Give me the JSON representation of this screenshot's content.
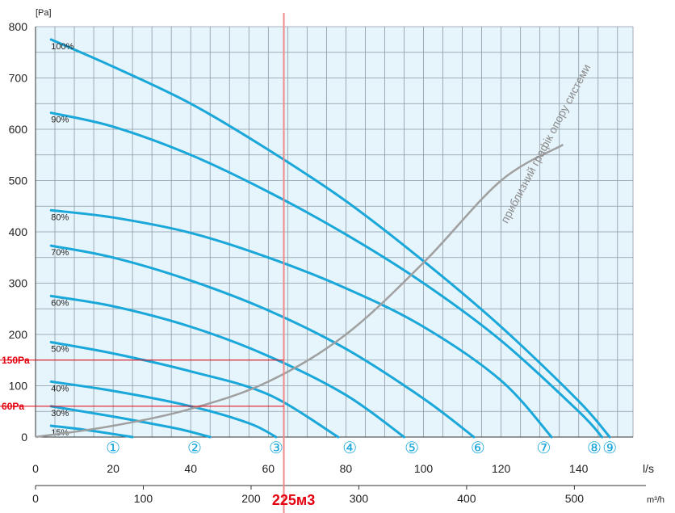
{
  "chart_data": {
    "type": "line",
    "y_unit": "[Pa]",
    "x_unit_ls": "l/s",
    "x_unit_m3h": "m³/h",
    "ylim": [
      0,
      800
    ],
    "xlim_ls": [
      0,
      154
    ],
    "yticks": [
      0,
      100,
      200,
      300,
      400,
      500,
      600,
      700,
      800
    ],
    "xticks_ls": [
      0,
      20,
      40,
      60,
      80,
      100,
      120,
      140
    ],
    "xticks_m3h": [
      0,
      100,
      200,
      300,
      400,
      500
    ],
    "grid": true,
    "colors": {
      "curve": "#1aa7d9",
      "system": "#a0a0a0",
      "marker": "#e3000f",
      "plot_bg": "#e6f4fb"
    },
    "series": [
      {
        "name": "100%",
        "x": [
          4,
          20,
          40,
          60,
          80,
          100,
          120,
          140,
          148
        ],
        "y": [
          775,
          722,
          650,
          560,
          460,
          343,
          215,
          70,
          0
        ]
      },
      {
        "name": "90%",
        "x": [
          4,
          20,
          40,
          60,
          80,
          100,
          120,
          140,
          146
        ],
        "y": [
          632,
          605,
          550,
          478,
          395,
          300,
          188,
          50,
          0
        ]
      },
      {
        "name": "80%",
        "x": [
          4,
          20,
          40,
          60,
          80,
          100,
          120,
          133
        ],
        "y": [
          442,
          428,
          398,
          350,
          290,
          215,
          110,
          0
        ]
      },
      {
        "name": "70%",
        "x": [
          4,
          20,
          40,
          60,
          80,
          100,
          113
        ],
        "y": [
          373,
          350,
          305,
          247,
          172,
          75,
          0
        ]
      },
      {
        "name": "60%",
        "x": [
          4,
          20,
          40,
          60,
          80,
          95
        ],
        "y": [
          275,
          255,
          215,
          158,
          82,
          0
        ]
      },
      {
        "name": "50%",
        "x": [
          4,
          20,
          40,
          60,
          78
        ],
        "y": [
          185,
          163,
          128,
          83,
          0
        ]
      },
      {
        "name": "40%",
        "x": [
          4,
          20,
          40,
          55,
          62
        ],
        "y": [
          108,
          90,
          60,
          27,
          0
        ]
      },
      {
        "name": "30%",
        "x": [
          4,
          20,
          30,
          38,
          45
        ],
        "y": [
          60,
          40,
          26,
          14,
          0
        ]
      },
      {
        "name": "15%",
        "x": [
          4,
          12,
          20,
          25
        ],
        "y": [
          22,
          15,
          6,
          0
        ]
      }
    ],
    "series_label_ls": [
      4,
      4,
      4,
      4,
      4,
      4,
      4,
      4,
      4
    ],
    "curve_numbers": [
      {
        "label": "①",
        "x": 20
      },
      {
        "label": "②",
        "x": 41
      },
      {
        "label": "③",
        "x": 62
      },
      {
        "label": "④",
        "x": 81
      },
      {
        "label": "⑤",
        "x": 97
      },
      {
        "label": "⑥",
        "x": 114
      },
      {
        "label": "⑦",
        "x": 131
      },
      {
        "label": "⑧",
        "x": 144
      },
      {
        "label": "⑨",
        "x": 148
      }
    ],
    "system_curve": {
      "label": "приблизний графік опору системи",
      "x": [
        0,
        20,
        40,
        60,
        80,
        100,
        120,
        136
      ],
      "y": [
        0,
        22,
        55,
        108,
        200,
        340,
        500,
        570
      ]
    },
    "markers": {
      "vertical_label": "225м3",
      "vertical_ls": 64,
      "levels": [
        {
          "label": "150Pa",
          "y": 150
        },
        {
          "label": "60Pa",
          "y": 60
        }
      ]
    }
  }
}
